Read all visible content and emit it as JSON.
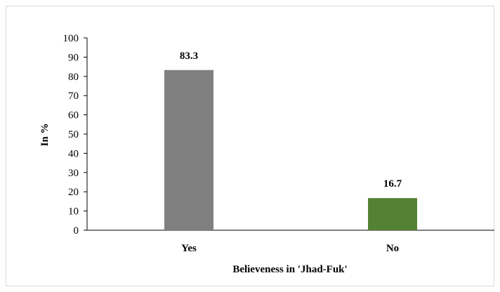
{
  "chart_data": {
    "type": "bar",
    "categories": [
      "Yes",
      "No"
    ],
    "values": [
      83.3,
      16.7
    ],
    "value_labels": [
      "83.3",
      "16.7"
    ],
    "colors": [
      "#808080",
      "#548235"
    ],
    "xlabel": "Believeness in 'Jhad-Fuk'",
    "ylabel": "In %",
    "ylim": [
      0,
      100
    ],
    "yticks": [
      0,
      10,
      20,
      30,
      40,
      50,
      60,
      70,
      80,
      90,
      100
    ],
    "grid": false,
    "legend": "none"
  }
}
